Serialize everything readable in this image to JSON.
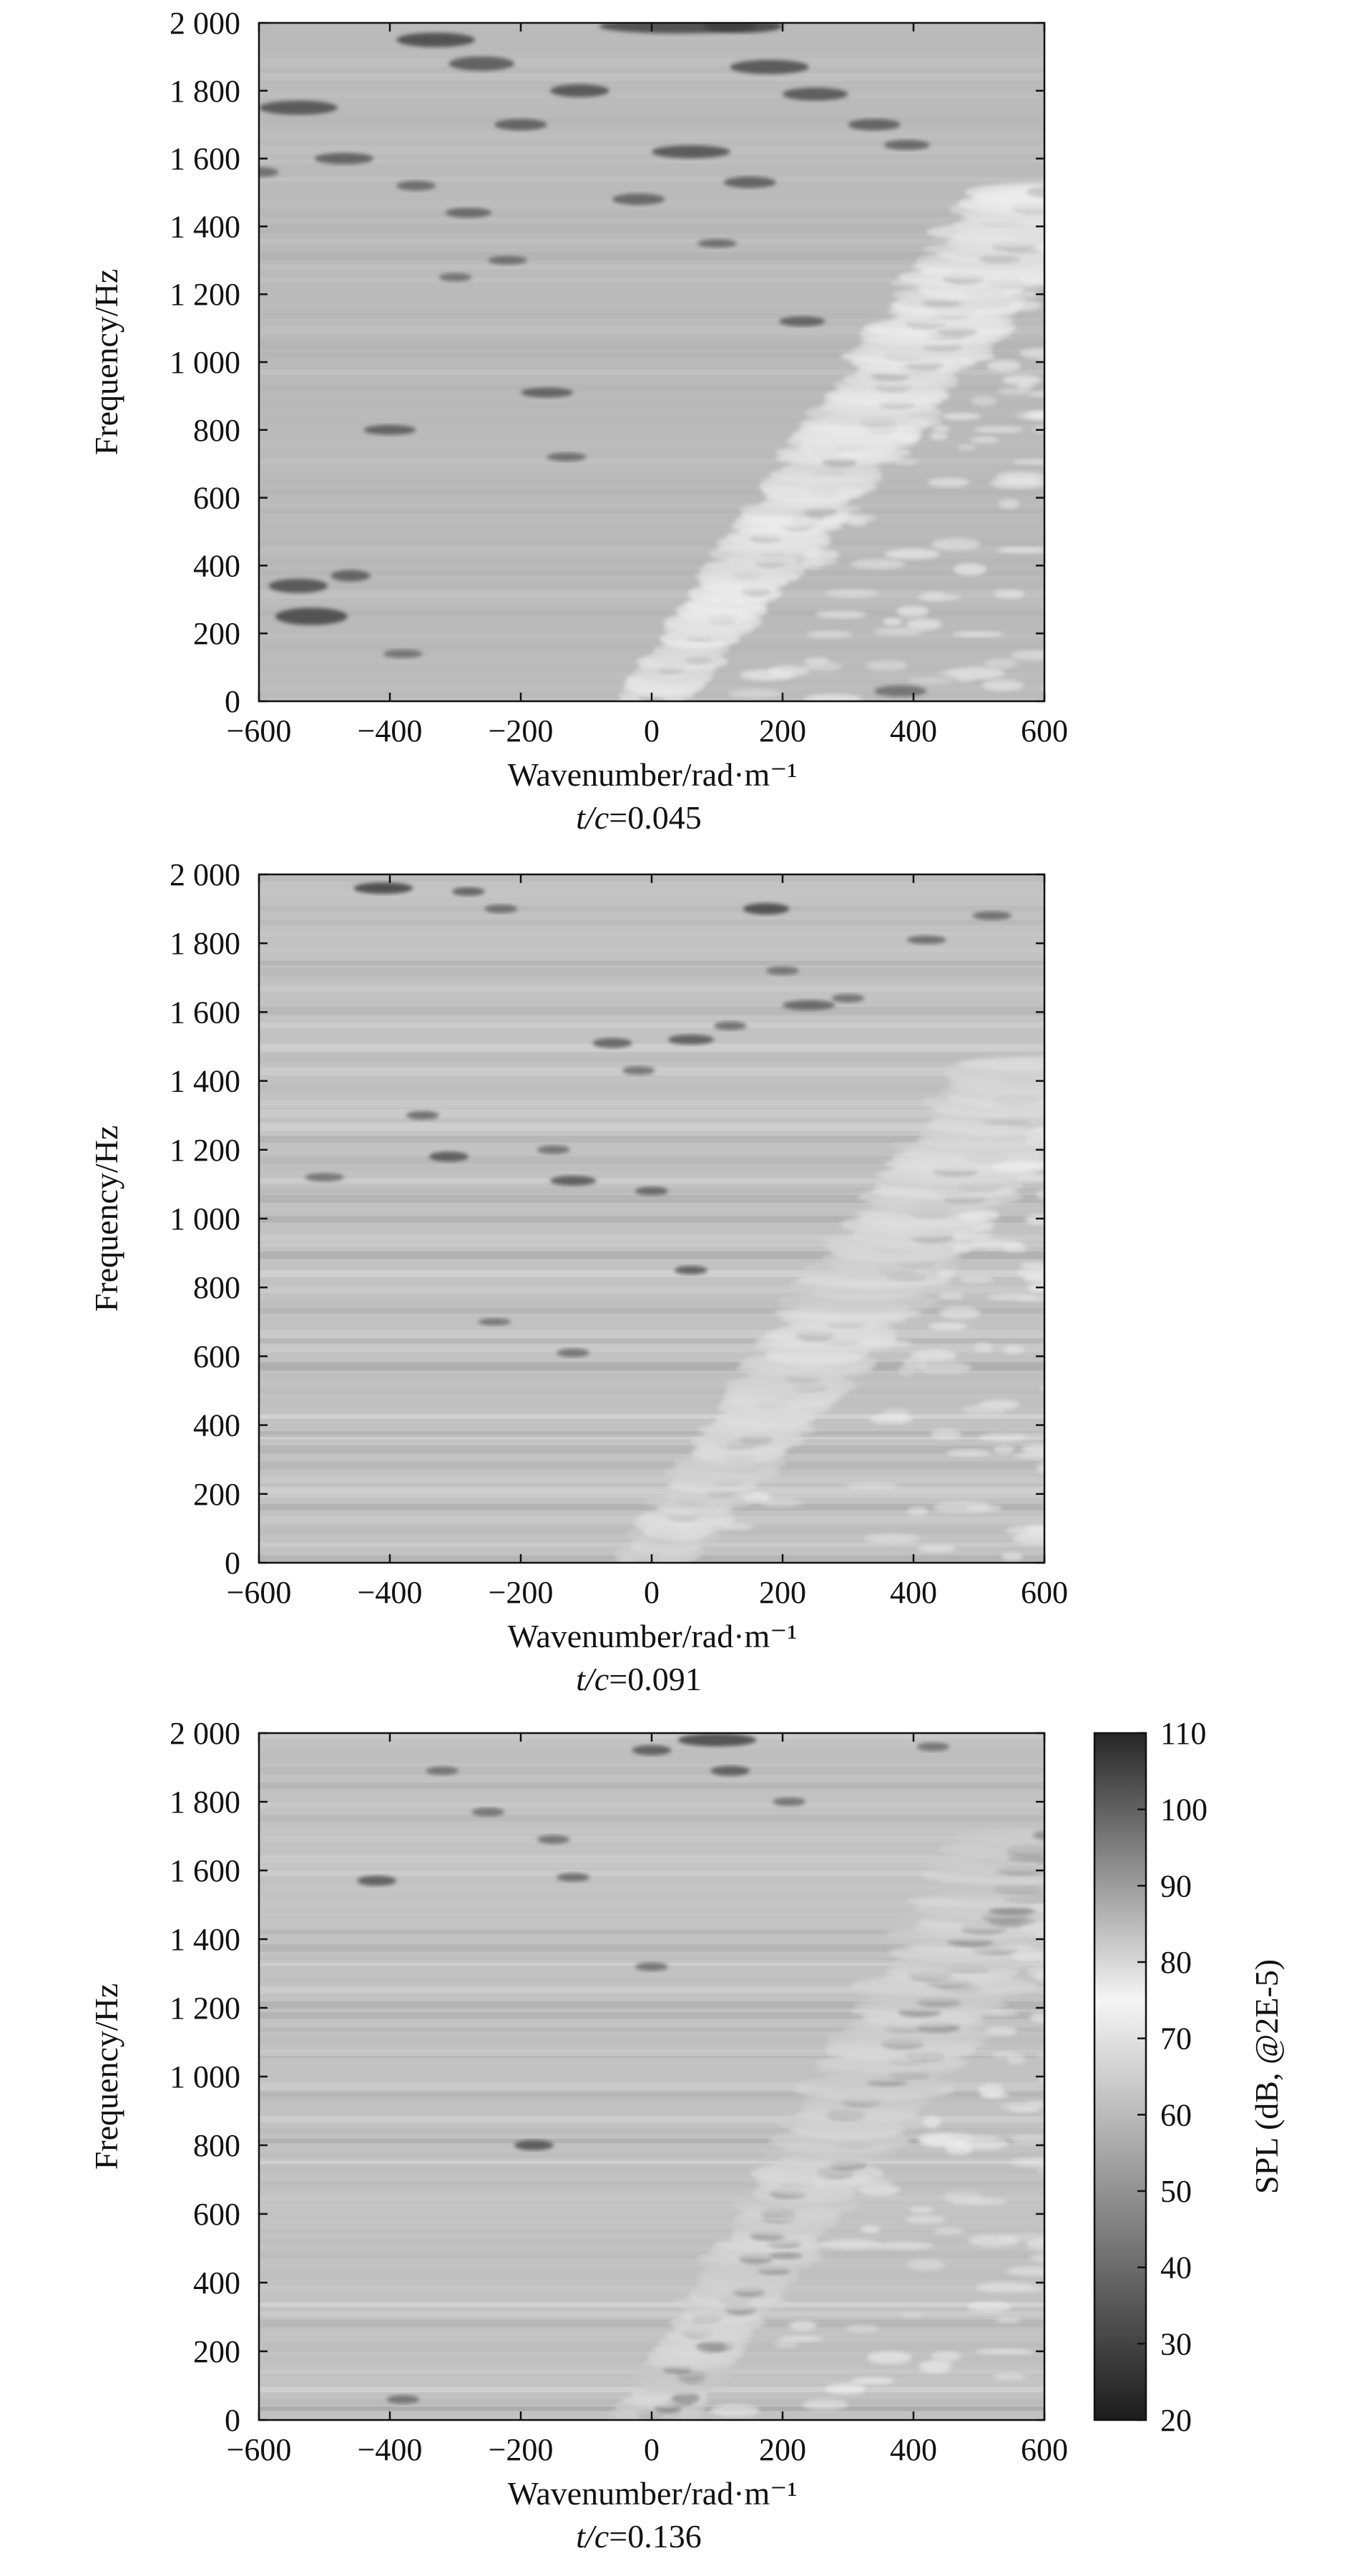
{
  "chart_data": [
    {
      "type": "heatmap",
      "title": "",
      "xlabel": "Wavenumber/rad·m⁻¹",
      "ylabel": "Frequency/Hz",
      "caption_var": "t/c",
      "caption_value": "=0.045",
      "xlim": [
        -600,
        600
      ],
      "ylim": [
        0,
        2000
      ],
      "x_ticks": [
        -600,
        -400,
        -200,
        0,
        200,
        400,
        600
      ],
      "x_tick_labels": [
        "−600",
        "−400",
        "−200",
        "0",
        "200",
        "400",
        "600"
      ],
      "y_ticks": [
        0,
        200,
        400,
        600,
        800,
        1000,
        1200,
        1400,
        1600,
        1800,
        2000
      ],
      "y_tick_labels": [
        "0",
        "200",
        "400",
        "600",
        "800",
        "1 000",
        "1 200",
        "1 400",
        "1 600",
        "1 800",
        "2 000"
      ],
      "ridge": {
        "x_start": 0,
        "y_start": 0,
        "x_end": 600,
        "y_end": 1500,
        "half_width": 70
      },
      "ridge_peak_spl": 80,
      "background_spl": 60,
      "inner_spl": 55,
      "spots": [
        [
          -520,
          250,
          55,
          12,
          30
        ],
        [
          -540,
          340,
          45,
          10,
          32
        ],
        [
          -460,
          370,
          30,
          8,
          35
        ],
        [
          -540,
          1750,
          60,
          10,
          32
        ],
        [
          -470,
          1600,
          45,
          8,
          35
        ],
        [
          -330,
          1950,
          60,
          10,
          30
        ],
        [
          -260,
          1880,
          50,
          10,
          34
        ],
        [
          -200,
          1700,
          40,
          8,
          35
        ],
        [
          -110,
          1800,
          45,
          9,
          32
        ],
        [
          40,
          1990,
          120,
          10,
          30
        ],
        [
          140,
          1990,
          60,
          9,
          28
        ],
        [
          180,
          1870,
          60,
          10,
          32
        ],
        [
          60,
          1620,
          60,
          9,
          32
        ],
        [
          150,
          1530,
          40,
          8,
          35
        ],
        [
          -20,
          1480,
          40,
          8,
          36
        ],
        [
          -400,
          800,
          40,
          7,
          35
        ],
        [
          -160,
          910,
          40,
          7,
          35
        ],
        [
          -130,
          720,
          30,
          6,
          38
        ],
        [
          -220,
          1300,
          30,
          6,
          38
        ],
        [
          230,
          1120,
          35,
          7,
          35
        ],
        [
          250,
          1790,
          50,
          9,
          33
        ],
        [
          340,
          1700,
          40,
          8,
          35
        ],
        [
          390,
          1640,
          35,
          7,
          36
        ],
        [
          -360,
          1520,
          30,
          7,
          38
        ],
        [
          -280,
          1440,
          35,
          7,
          37
        ],
        [
          100,
          1350,
          30,
          6,
          38
        ],
        [
          -600,
          1560,
          30,
          7,
          38
        ],
        [
          -300,
          1250,
          25,
          6,
          40
        ],
        [
          380,
          30,
          40,
          8,
          40
        ],
        [
          -380,
          140,
          30,
          6,
          40
        ]
      ],
      "show_colorbar": false
    },
    {
      "type": "heatmap",
      "title": "",
      "xlabel": "Wavenumber/rad·m⁻¹",
      "ylabel": "Frequency/Hz",
      "caption_var": "t/c",
      "caption_value": "=0.091",
      "xlim": [
        -600,
        600
      ],
      "ylim": [
        0,
        2000
      ],
      "x_ticks": [
        -600,
        -400,
        -200,
        0,
        200,
        400,
        600
      ],
      "x_tick_labels": [
        "−600",
        "−400",
        "−200",
        "0",
        "200",
        "400",
        "600"
      ],
      "y_ticks": [
        0,
        200,
        400,
        600,
        800,
        1000,
        1200,
        1400,
        1600,
        1800,
        2000
      ],
      "y_tick_labels": [
        "0",
        "200",
        "400",
        "600",
        "800",
        "1 000",
        "1 200",
        "1 400",
        "1 600",
        "1 800",
        "2 000"
      ],
      "ridge": {
        "x_start": 0,
        "y_start": 0,
        "x_end": 600,
        "y_end": 1450,
        "half_width": 80
      },
      "ridge_peak_spl": 82,
      "background_spl": 62,
      "inner_spl": 55,
      "spots": [
        [
          -410,
          1960,
          45,
          8,
          28
        ],
        [
          -280,
          1950,
          25,
          6,
          35
        ],
        [
          175,
          1900,
          35,
          8,
          30
        ],
        [
          -230,
          1900,
          25,
          6,
          38
        ],
        [
          -60,
          1510,
          30,
          7,
          36
        ],
        [
          60,
          1520,
          35,
          7,
          34
        ],
        [
          120,
          1560,
          25,
          6,
          38
        ],
        [
          240,
          1620,
          40,
          7,
          36
        ],
        [
          -310,
          1180,
          30,
          7,
          33
        ],
        [
          -120,
          1110,
          35,
          7,
          33
        ],
        [
          0,
          1080,
          25,
          6,
          36
        ],
        [
          60,
          850,
          25,
          6,
          34
        ],
        [
          -350,
          1300,
          25,
          6,
          38
        ],
        [
          -150,
          1200,
          25,
          6,
          40
        ],
        [
          -120,
          610,
          25,
          6,
          40
        ],
        [
          -240,
          700,
          25,
          5,
          40
        ],
        [
          420,
          1810,
          30,
          6,
          38
        ],
        [
          520,
          1880,
          30,
          6,
          38
        ],
        [
          -500,
          1120,
          30,
          6,
          40
        ],
        [
          200,
          1720,
          25,
          6,
          40
        ],
        [
          300,
          1640,
          25,
          6,
          40
        ],
        [
          -20,
          1430,
          25,
          6,
          40
        ]
      ],
      "show_colorbar": false
    },
    {
      "type": "heatmap",
      "title": "",
      "xlabel": "Wavenumber/rad·m⁻¹",
      "ylabel": "Frequency/Hz",
      "caption_var": "t/c",
      "caption_value": "=0.136",
      "xlim": [
        -600,
        600
      ],
      "ylim": [
        0,
        2000
      ],
      "x_ticks": [
        -600,
        -400,
        -200,
        0,
        200,
        400,
        600
      ],
      "x_tick_labels": [
        "−600",
        "−400",
        "−200",
        "0",
        "200",
        "400",
        "600"
      ],
      "y_ticks": [
        0,
        200,
        400,
        600,
        800,
        1000,
        1200,
        1400,
        1600,
        1800,
        2000
      ],
      "y_tick_labels": [
        "0",
        "200",
        "400",
        "600",
        "800",
        "1 000",
        "1 200",
        "1 400",
        "1 600",
        "1 800",
        "2 000"
      ],
      "ridge": {
        "x_start": 0,
        "y_start": 0,
        "x_end": 600,
        "y_end": 1700,
        "half_width": 80
      },
      "ridge_peak_spl": 83,
      "background_spl": 62,
      "inner_spl": 42,
      "spots": [
        [
          100,
          1980,
          60,
          9,
          30
        ],
        [
          0,
          1950,
          30,
          7,
          34
        ],
        [
          120,
          1890,
          30,
          7,
          34
        ],
        [
          -420,
          1570,
          30,
          7,
          34
        ],
        [
          -180,
          800,
          30,
          7,
          32
        ],
        [
          -120,
          1580,
          25,
          6,
          38
        ],
        [
          -320,
          1890,
          25,
          6,
          40
        ],
        [
          210,
          1800,
          25,
          6,
          40
        ],
        [
          0,
          1320,
          25,
          6,
          40
        ],
        [
          -150,
          1690,
          25,
          6,
          40
        ],
        [
          -250,
          1770,
          25,
          6,
          40
        ],
        [
          -380,
          60,
          25,
          6,
          40
        ],
        [
          430,
          1960,
          25,
          6,
          40
        ]
      ],
      "show_colorbar": true
    }
  ],
  "colorbar": {
    "label": "SPL (dB, @2E-5)",
    "min": 20,
    "max": 110,
    "ticks": [
      20,
      30,
      40,
      50,
      60,
      70,
      80,
      90,
      100,
      110
    ],
    "scale": "gray: 20 dark, 75 light, 110 dark"
  }
}
